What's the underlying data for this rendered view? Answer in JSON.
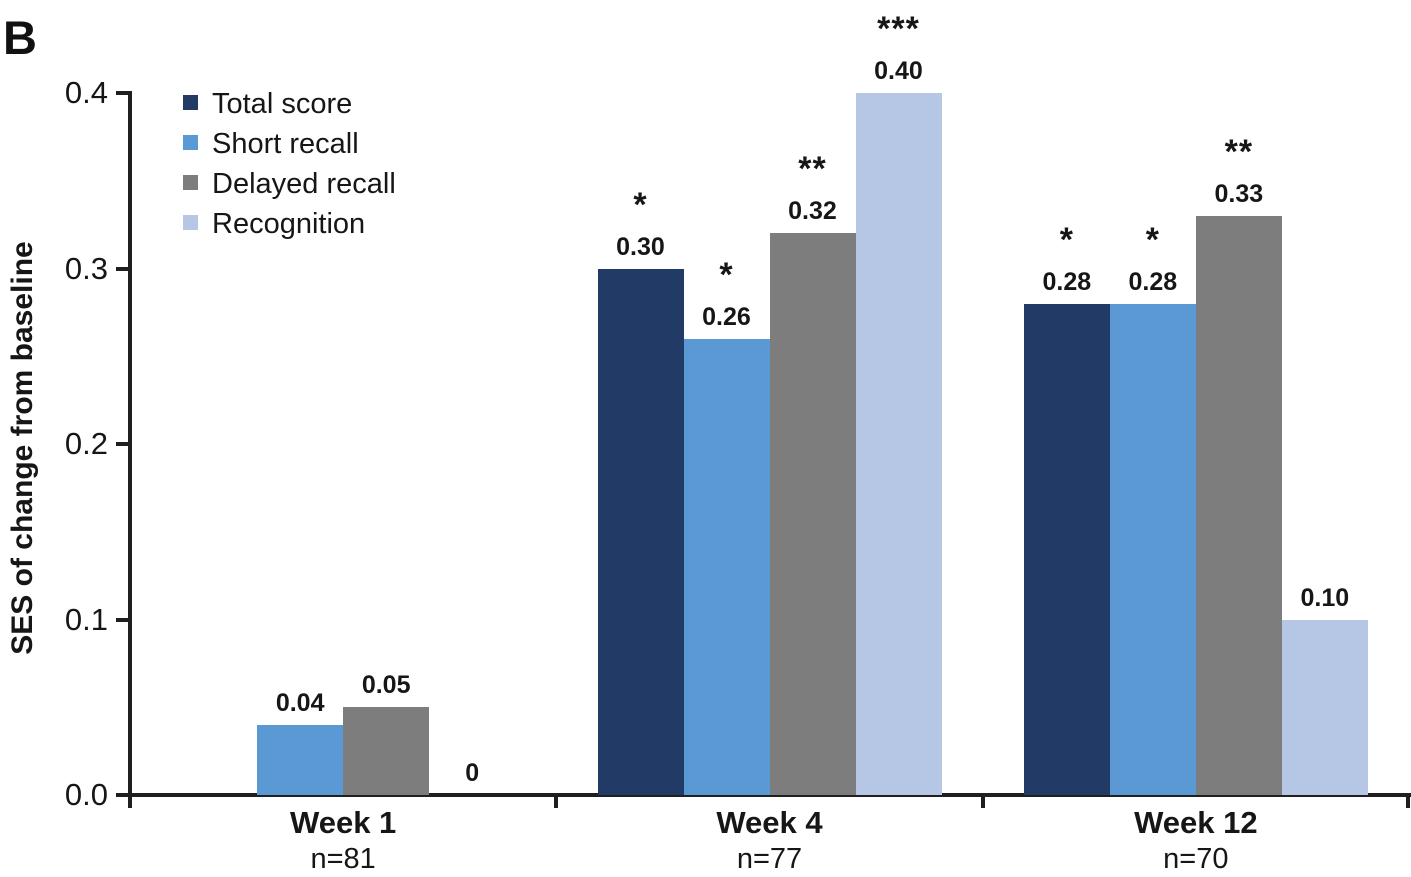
{
  "figure": {
    "panel_label": "B",
    "ylabel": "SES of change from baseline"
  },
  "chart_data": {
    "type": "bar",
    "title": "",
    "panel_label": "B",
    "xlabel": "",
    "ylabel": "SES of change from baseline",
    "ylim": [
      0.0,
      0.4
    ],
    "yticks": [
      0.0,
      0.1,
      0.2,
      0.3,
      0.4
    ],
    "ytick_labels": [
      "0.0",
      "0.1",
      "0.2",
      "0.3",
      "0.4"
    ],
    "grid": false,
    "legend_position": "top-left",
    "categories": [
      "Week 1",
      "Week 4",
      "Week 12"
    ],
    "category_sublabels": [
      "n=81",
      "n=77",
      "n=70"
    ],
    "series": [
      {
        "name": "Total score",
        "color": "#223a66",
        "values": [
          null,
          0.3,
          0.28
        ],
        "value_labels": [
          "",
          "0.30",
          "0.28"
        ],
        "significance": [
          "",
          "*",
          "*"
        ]
      },
      {
        "name": "Short recall",
        "color": "#5a99d3",
        "values": [
          0.04,
          0.26,
          0.28
        ],
        "value_labels": [
          "0.04",
          "0.26",
          "0.28"
        ],
        "significance": [
          "",
          "*",
          "*"
        ]
      },
      {
        "name": "Delayed recall",
        "color": "#7d7d7d",
        "values": [
          0.05,
          0.32,
          0.33
        ],
        "value_labels": [
          "0.05",
          "0.32",
          "0.33"
        ],
        "significance": [
          "",
          "**",
          "**"
        ]
      },
      {
        "name": "Recognition",
        "color": "#b6c6e5",
        "values": [
          0.0,
          0.4,
          0.1
        ],
        "value_labels": [
          "0",
          "0.40",
          "0.10"
        ],
        "significance": [
          "",
          "***",
          ""
        ]
      }
    ]
  }
}
